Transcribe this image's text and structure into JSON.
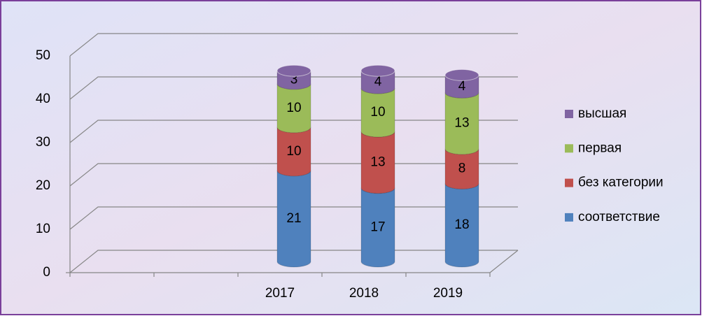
{
  "chart_data": {
    "type": "bar3d_cylinder_stacked",
    "categories": [
      null,
      null,
      "2017",
      "2018",
      "2019"
    ],
    "series": [
      {
        "name": "соответствие",
        "color": "#4f81bd",
        "values": [
          null,
          null,
          21,
          17,
          18
        ]
      },
      {
        "name": "без категории",
        "color": "#c0504d",
        "values": [
          null,
          null,
          10,
          13,
          8
        ]
      },
      {
        "name": "первая",
        "color": "#9bbb59",
        "values": [
          null,
          null,
          10,
          10,
          13
        ]
      },
      {
        "name": "высшая",
        "color": "#8064a2",
        "values": [
          null,
          null,
          3,
          4,
          4
        ]
      }
    ],
    "ylim": [
      0,
      50
    ],
    "yticks": [
      0,
      10,
      20,
      30,
      40,
      50
    ],
    "grid": true,
    "legend": "right"
  }
}
